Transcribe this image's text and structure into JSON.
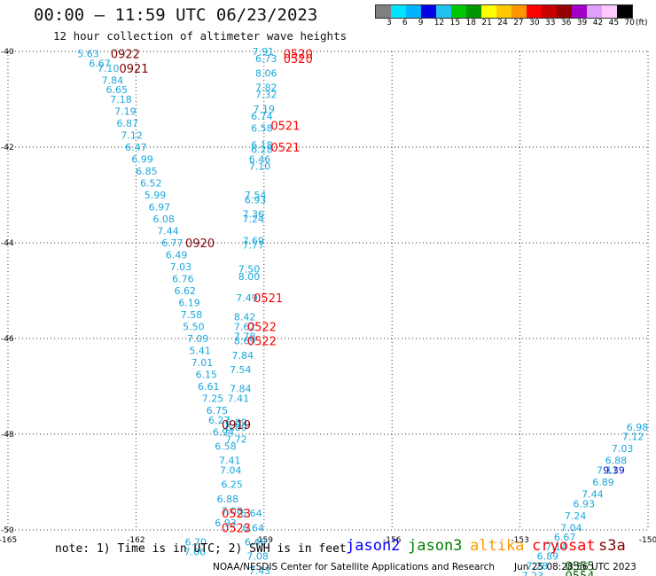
{
  "header": {
    "title": "00:00 — 11:59 UTC 06/23/2023",
    "subtitle": "12 hour collection of altimeter wave heights"
  },
  "colorbar": {
    "colors": [
      "#7f7f7f",
      "#00e5ff",
      "#00b4ff",
      "#0000e6",
      "#22c2f0",
      "#00c800",
      "#009600",
      "#ffff00",
      "#ffc800",
      "#ff9600",
      "#ff0000",
      "#c80000",
      "#960000",
      "#a000c8",
      "#e0a0ff",
      "#ffc8ff",
      "#000000"
    ],
    "labels": [
      "3",
      "6",
      "9",
      "12",
      "15",
      "18",
      "21",
      "24",
      "27",
      "30",
      "33",
      "36",
      "39",
      "42",
      "45",
      "70"
    ],
    "unit": "(ft)"
  },
  "axes": {
    "lon_ticks": [
      "-165",
      "-162",
      "-159",
      "-156",
      "-153",
      "-150"
    ],
    "lat_ticks": [
      "-40",
      "-42",
      "-44",
      "-46",
      "-48",
      "-50"
    ]
  },
  "map_data": {
    "track_color": "#19a8dc",
    "western_track": [
      {
        "lat": -40.05,
        "lon": -163.12,
        "swh": "5.63"
      },
      {
        "lat": -40.25,
        "lon": -162.85,
        "swh": "6.67"
      },
      {
        "lat": -40.35,
        "lon": -162.65,
        "swh": "7.10"
      },
      {
        "lat": -40.6,
        "lon": -162.55,
        "swh": "7.84"
      },
      {
        "lat": -40.8,
        "lon": -162.45,
        "swh": "6.65"
      },
      {
        "lat": -41.0,
        "lon": -162.35,
        "swh": "7.18"
      },
      {
        "lat": -41.25,
        "lon": -162.25,
        "swh": "7.19"
      },
      {
        "lat": -41.5,
        "lon": -162.2,
        "swh": "6.87"
      },
      {
        "lat": -41.75,
        "lon": -162.1,
        "swh": "7.12"
      },
      {
        "lat": -42.0,
        "lon": -162.0,
        "swh": "6.47"
      },
      {
        "lat": -42.25,
        "lon": -161.85,
        "swh": "6.99"
      },
      {
        "lat": -42.5,
        "lon": -161.75,
        "swh": "6.85"
      },
      {
        "lat": -42.75,
        "lon": -161.65,
        "swh": "6.52"
      },
      {
        "lat": -43.0,
        "lon": -161.55,
        "swh": "5.99"
      },
      {
        "lat": -43.25,
        "lon": -161.45,
        "swh": "6.97"
      },
      {
        "lat": -43.5,
        "lon": -161.35,
        "swh": "6.08"
      },
      {
        "lat": -43.75,
        "lon": -161.25,
        "swh": "7.44"
      },
      {
        "lat": -44.0,
        "lon": -161.15,
        "swh": "6.77"
      },
      {
        "lat": -44.25,
        "lon": -161.05,
        "swh": "6.49"
      },
      {
        "lat": -44.5,
        "lon": -160.95,
        "swh": "7.03"
      },
      {
        "lat": -44.75,
        "lon": -160.9,
        "swh": "6.76"
      },
      {
        "lat": -45.0,
        "lon": -160.85,
        "swh": "6.62"
      },
      {
        "lat": -45.25,
        "lon": -160.75,
        "swh": "6.19"
      },
      {
        "lat": -45.5,
        "lon": -160.7,
        "swh": "7.58"
      },
      {
        "lat": -45.75,
        "lon": -160.65,
        "swh": "5.50"
      },
      {
        "lat": -46.0,
        "lon": -160.55,
        "swh": "7.09"
      },
      {
        "lat": -46.25,
        "lon": -160.5,
        "swh": "5.41"
      },
      {
        "lat": -46.5,
        "lon": -160.45,
        "swh": "7.01"
      },
      {
        "lat": -46.75,
        "lon": -160.35,
        "swh": "6.15"
      },
      {
        "lat": -47.0,
        "lon": -160.3,
        "swh": "6.61"
      },
      {
        "lat": -47.25,
        "lon": -160.2,
        "swh": "7.25"
      },
      {
        "lat": -47.5,
        "lon": -160.1,
        "swh": "6.75"
      },
      {
        "lat": -47.7,
        "lon": -160.05,
        "swh": "6.27"
      },
      {
        "lat": -47.95,
        "lon": -159.95,
        "swh": "6.94"
      },
      {
        "lat": -48.25,
        "lon": -159.9,
        "swh": "6.58"
      },
      {
        "lat": -48.55,
        "lon": -159.8,
        "swh": "7.41"
      },
      {
        "lat": -48.75,
        "lon": -159.78,
        "swh": "7.04"
      },
      {
        "lat": -49.05,
        "lon": -159.75,
        "swh": "6.25"
      },
      {
        "lat": -49.35,
        "lon": -159.85,
        "swh": "6.88"
      },
      {
        "lat": -49.6,
        "lon": -159.75,
        "swh": "7.08"
      },
      {
        "lat": -49.85,
        "lon": -159.9,
        "swh": "6.93"
      },
      {
        "lat": -50.25,
        "lon": -160.6,
        "swh": "6.70"
      },
      {
        "lat": -50.45,
        "lon": -160.62,
        "swh": "7.06"
      }
    ],
    "central_track": [
      {
        "lat": -40.0,
        "lon": -159.02,
        "swh": "7.91"
      },
      {
        "lat": -40.15,
        "lon": -158.95,
        "swh": "6.73"
      },
      {
        "lat": -40.45,
        "lon": -158.95,
        "swh": "8.06"
      },
      {
        "lat": -40.75,
        "lon": -158.95,
        "swh": "7.82"
      },
      {
        "lat": -40.9,
        "lon": -158.95,
        "swh": "7.32"
      },
      {
        "lat": -41.2,
        "lon": -159.0,
        "swh": "7.19"
      },
      {
        "lat": -41.35,
        "lon": -159.05,
        "swh": "6.74"
      },
      {
        "lat": -41.6,
        "lon": -159.05,
        "swh": "6.58"
      },
      {
        "lat": -41.95,
        "lon": -159.05,
        "swh": "6.18"
      },
      {
        "lat": -42.05,
        "lon": -159.05,
        "swh": "6.28"
      },
      {
        "lat": -42.25,
        "lon": -159.1,
        "swh": "6.46"
      },
      {
        "lat": -42.4,
        "lon": -159.1,
        "swh": "7.10"
      },
      {
        "lat": -43.0,
        "lon": -159.2,
        "swh": "7.54"
      },
      {
        "lat": -43.1,
        "lon": -159.2,
        "swh": "6.93"
      },
      {
        "lat": -43.4,
        "lon": -159.25,
        "swh": "7.36"
      },
      {
        "lat": -43.5,
        "lon": -159.25,
        "swh": "7.24"
      },
      {
        "lat": -43.95,
        "lon": -159.25,
        "swh": "7.69"
      },
      {
        "lat": -44.05,
        "lon": -159.25,
        "swh": "7.77"
      },
      {
        "lat": -44.55,
        "lon": -159.35,
        "swh": "7.50"
      },
      {
        "lat": -44.7,
        "lon": -159.35,
        "swh": "8.00"
      },
      {
        "lat": -45.15,
        "lon": -159.4,
        "swh": "7.49"
      },
      {
        "lat": -45.55,
        "lon": -159.45,
        "swh": "8.42"
      },
      {
        "lat": -45.75,
        "lon": -159.45,
        "swh": "7.62"
      },
      {
        "lat": -45.95,
        "lon": -159.45,
        "swh": "7.78"
      },
      {
        "lat": -46.05,
        "lon": -159.45,
        "swh": "8.69"
      },
      {
        "lat": -46.35,
        "lon": -159.5,
        "swh": "7.84"
      },
      {
        "lat": -46.65,
        "lon": -159.55,
        "swh": "7.54"
      },
      {
        "lat": -47.05,
        "lon": -159.55,
        "swh": "7.84"
      },
      {
        "lat": -47.25,
        "lon": -159.6,
        "swh": "7.41"
      },
      {
        "lat": -47.75,
        "lon": -159.65,
        "swh": "6.89"
      },
      {
        "lat": -47.85,
        "lon": -159.65,
        "swh": "6.89"
      },
      {
        "lat": -48.1,
        "lon": -159.65,
        "swh": "7.72"
      },
      {
        "lat": -49.65,
        "lon": -159.3,
        "swh": "6.64"
      },
      {
        "lat": -49.95,
        "lon": -159.25,
        "swh": "6.64"
      },
      {
        "lat": -50.25,
        "lon": -159.2,
        "swh": "6.48"
      },
      {
        "lat": -50.55,
        "lon": -159.15,
        "swh": "7.08"
      },
      {
        "lat": -50.85,
        "lon": -159.1,
        "swh": "7.43"
      }
    ],
    "east_track": [
      {
        "lat": -50.95,
        "lon": -152.7,
        "swh": "7.23"
      },
      {
        "lat": -50.75,
        "lon": -152.6,
        "swh": "7.28"
      },
      {
        "lat": -50.55,
        "lon": -152.35,
        "swh": "6.89"
      },
      {
        "lat": -50.35,
        "lon": -152.15,
        "swh": "7.14"
      },
      {
        "lat": -50.15,
        "lon": -151.95,
        "swh": "6.67"
      },
      {
        "lat": -49.95,
        "lon": -151.8,
        "swh": "7.04"
      },
      {
        "lat": -49.7,
        "lon": -151.7,
        "swh": "7.24"
      },
      {
        "lat": -49.45,
        "lon": -151.5,
        "swh": "6.93"
      },
      {
        "lat": -49.25,
        "lon": -151.3,
        "swh": "7.44"
      },
      {
        "lat": -49.0,
        "lon": -151.05,
        "swh": "6.89"
      },
      {
        "lat": -48.75,
        "lon": -150.95,
        "swh": "7.11"
      },
      {
        "lat": -48.55,
        "lon": -150.75,
        "swh": "6.88"
      },
      {
        "lat": -48.3,
        "lon": -150.6,
        "swh": "7.03"
      },
      {
        "lat": -48.05,
        "lon": -150.35,
        "swh": "7.12"
      },
      {
        "lat": -47.85,
        "lon": -150.25,
        "swh": "6.98"
      }
    ],
    "high_value": {
      "lat": -48.75,
      "lon": -150.8,
      "swh": "9.39",
      "color": "#0000c8"
    },
    "pass_times": [
      {
        "lat": -40.05,
        "lon": -162.25,
        "text": "0922",
        "color": "#800000"
      },
      {
        "lat": -40.35,
        "lon": -162.05,
        "text": "0921",
        "color": "#800000"
      },
      {
        "lat": -44.0,
        "lon": -160.5,
        "text": "0920",
        "color": "#800000"
      },
      {
        "lat": -47.8,
        "lon": -159.65,
        "text": "0919",
        "color": "#800000"
      },
      {
        "lat": -40.05,
        "lon": -158.2,
        "text": "0520",
        "color": "#ff0000"
      },
      {
        "lat": -40.15,
        "lon": -158.2,
        "text": "0520",
        "color": "#ff0000"
      },
      {
        "lat": -41.55,
        "lon": -158.5,
        "text": "0521",
        "color": "#ff0000"
      },
      {
        "lat": -42.0,
        "lon": -158.5,
        "text": "0521",
        "color": "#ff0000"
      },
      {
        "lat": -45.15,
        "lon": -158.9,
        "text": "0521",
        "color": "#ff0000"
      },
      {
        "lat": -45.75,
        "lon": -159.05,
        "text": "0522",
        "color": "#ff0000"
      },
      {
        "lat": -46.05,
        "lon": -159.05,
        "text": "0522",
        "color": "#ff0000"
      },
      {
        "lat": -49.65,
        "lon": -159.65,
        "text": "0523",
        "color": "#ff0000"
      },
      {
        "lat": -49.95,
        "lon": -159.65,
        "text": "0523",
        "color": "#ff0000"
      },
      {
        "lat": -50.75,
        "lon": -151.6,
        "text": "0555",
        "color": "#006400"
      },
      {
        "lat": -50.95,
        "lon": -151.6,
        "text": "0554",
        "color": "#006400"
      }
    ]
  },
  "footer": {
    "note": "note: 1) Time is in UTC; 2) SWH is in feet",
    "satellites": [
      {
        "name": "jason2",
        "color": "#0000ff"
      },
      {
        "name": "jason3",
        "color": "#008000"
      },
      {
        "name": "altika",
        "color": "#ff9900"
      },
      {
        "name": "cryosat",
        "color": "#ff0000"
      },
      {
        "name": "s3a",
        "color": "#800000"
      }
    ],
    "credit": "NOAA/NESDIS Center for Satellite Applications and Research",
    "timestamp": "Jun 25 08:28:56 UTC 2023"
  }
}
